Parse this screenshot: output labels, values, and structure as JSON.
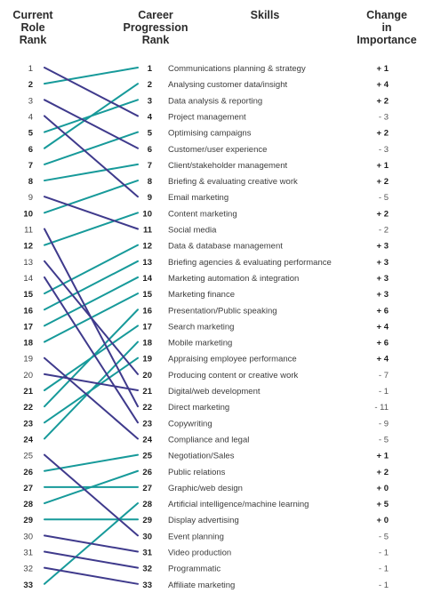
{
  "headers": {
    "current_rank": "Current\nRole\nRank",
    "career_rank": "Career\nProgression\nRank",
    "skills": "Skills",
    "change": "Change\nin\nImportance"
  },
  "colors": {
    "rise": "#179a9a",
    "fall": "#3f3a8c"
  },
  "rows": [
    {
      "rank": 1,
      "skill": "Communications planning & strategy",
      "current": 2,
      "change": "+ 1"
    },
    {
      "rank": 2,
      "skill": "Analysing customer data/insight",
      "current": 6,
      "change": "+ 4"
    },
    {
      "rank": 3,
      "skill": "Data analysis & reporting",
      "current": 5,
      "change": "+ 2"
    },
    {
      "rank": 4,
      "skill": "Project management",
      "current": 1,
      "change": "- 3"
    },
    {
      "rank": 5,
      "skill": "Optimising campaigns",
      "current": 7,
      "change": "+ 2"
    },
    {
      "rank": 6,
      "skill": "Customer/user experience",
      "current": 3,
      "change": "- 3"
    },
    {
      "rank": 7,
      "skill": "Client/stakeholder management",
      "current": 8,
      "change": "+ 1"
    },
    {
      "rank": 8,
      "skill": "Briefing & evaluating creative work",
      "current": 10,
      "change": "+ 2"
    },
    {
      "rank": 9,
      "skill": "Email marketing",
      "current": 4,
      "change": "- 5"
    },
    {
      "rank": 10,
      "skill": "Content marketing",
      "current": 12,
      "change": "+ 2"
    },
    {
      "rank": 11,
      "skill": "Social media",
      "current": 9,
      "change": "- 2"
    },
    {
      "rank": 12,
      "skill": "Data & database management",
      "current": 15,
      "change": "+ 3"
    },
    {
      "rank": 13,
      "skill": "Briefing agencies & evaluating performance",
      "current": 16,
      "change": "+ 3"
    },
    {
      "rank": 14,
      "skill": "Marketing automation & integration",
      "current": 17,
      "change": "+ 3"
    },
    {
      "rank": 15,
      "skill": "Marketing finance",
      "current": 18,
      "change": "+ 3"
    },
    {
      "rank": 16,
      "skill": "Presentation/Public speaking",
      "current": 22,
      "change": "+ 6"
    },
    {
      "rank": 17,
      "skill": "Search marketing",
      "current": 21,
      "change": "+ 4"
    },
    {
      "rank": 18,
      "skill": "Mobile marketing",
      "current": 24,
      "change": "+ 6"
    },
    {
      "rank": 19,
      "skill": "Appraising employee performance",
      "current": 23,
      "change": "+ 4"
    },
    {
      "rank": 20,
      "skill": "Producing content or creative work",
      "current": 13,
      "change": "- 7"
    },
    {
      "rank": 21,
      "skill": "Digital/web development",
      "current": 20,
      "change": "- 1"
    },
    {
      "rank": 22,
      "skill": "Direct marketing",
      "current": 11,
      "change": "- 11"
    },
    {
      "rank": 23,
      "skill": "Copywriting",
      "current": 14,
      "change": "- 9"
    },
    {
      "rank": 24,
      "skill": "Compliance and legal",
      "current": 19,
      "change": "- 5"
    },
    {
      "rank": 25,
      "skill": "Negotiation/Sales",
      "current": 26,
      "change": "+ 1"
    },
    {
      "rank": 26,
      "skill": "Public relations",
      "current": 28,
      "change": "+ 2"
    },
    {
      "rank": 27,
      "skill": "Graphic/web design",
      "current": 27,
      "change": "+ 0"
    },
    {
      "rank": 28,
      "skill": "Artificial intelligence/machine learning",
      "current": 33,
      "change": "+ 5"
    },
    {
      "rank": 29,
      "skill": "Display advertising",
      "current": 29,
      "change": "+ 0"
    },
    {
      "rank": 30,
      "skill": "Event planning",
      "current": 25,
      "change": "- 5"
    },
    {
      "rank": 31,
      "skill": "Video production",
      "current": 30,
      "change": "- 1"
    },
    {
      "rank": 32,
      "skill": "Programmatic",
      "current": 31,
      "change": "- 1"
    },
    {
      "rank": 33,
      "skill": "Affiliate marketing",
      "current": 32,
      "change": "- 1"
    }
  ],
  "bold_current_ranks": [
    2,
    5,
    6,
    7,
    8,
    10,
    12,
    15,
    16,
    17,
    18,
    21,
    22,
    23,
    24,
    26,
    27,
    28,
    29,
    33
  ]
}
